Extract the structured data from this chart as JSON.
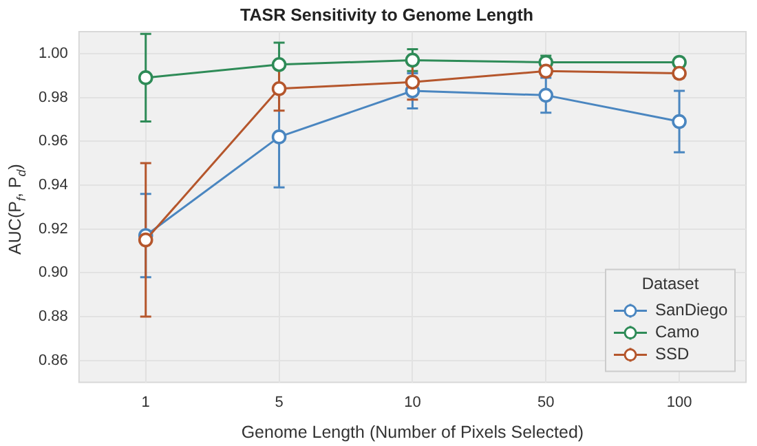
{
  "chart_data": {
    "type": "line",
    "title": "TASR Sensitivity to Genome Length",
    "xlabel": "Genome Length (Number of Pixels Selected)",
    "ylabel": "AUC(P$_{f}$, P$_{d}$)",
    "legend_title": "Dataset",
    "categories": [
      "1",
      "5",
      "10",
      "50",
      "100"
    ],
    "series": [
      {
        "name": "SanDiego",
        "color": "#4a86c0",
        "values": [
          0.917,
          0.962,
          0.983,
          0.981,
          0.969
        ],
        "errors": [
          0.019,
          0.023,
          0.008,
          0.008,
          0.014
        ]
      },
      {
        "name": "Camo",
        "color": "#2e8b57",
        "values": [
          0.989,
          0.995,
          0.997,
          0.996,
          0.996
        ],
        "errors": [
          0.02,
          0.01,
          0.005,
          0.003,
          0.002
        ]
      },
      {
        "name": "SSD",
        "color": "#b5562c",
        "values": [
          0.915,
          0.984,
          0.987,
          0.992,
          0.991
        ],
        "errors": [
          0.035,
          0.01,
          0.008,
          0.002,
          0.002
        ]
      }
    ],
    "ylim": [
      0.85,
      1.01
    ],
    "yticks": [
      0.86,
      0.88,
      {
        "value": 0.9,
        "label": "0.90"
      },
      0.92,
      0.94,
      0.96,
      0.98,
      {
        "value": 1,
        "label": "1.00"
      }
    ],
    "grid": true,
    "legend": "bottom right",
    "marker": "circle",
    "line_style": "solid"
  }
}
